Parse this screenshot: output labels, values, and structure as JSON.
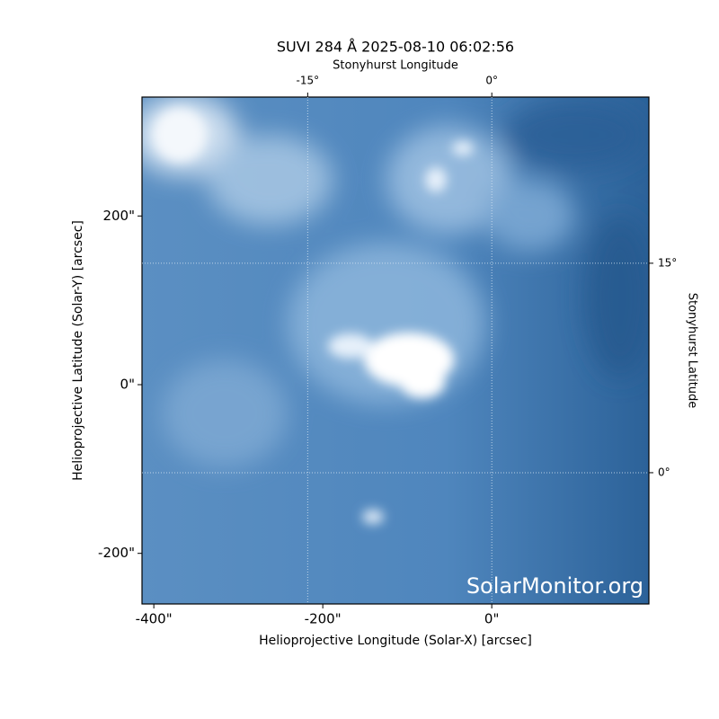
{
  "chart_data": {
    "type": "image",
    "title": "SUVI 284 Å 2025-08-10 06:02:56",
    "xlabel": "Helioprojective Longitude (Solar-X) [arcsec]",
    "ylabel": "Helioprojective Latitude (Solar-Y) [arcsec]",
    "x2label": "Stonyhurst Longitude",
    "y2label": "Stonyhurst Latitude",
    "watermark": "SolarMonitor.org",
    "xlim": [
      -414,
      186
    ],
    "ylim": [
      -260,
      341
    ],
    "xticks": [
      {
        "value": -400,
        "label": "-400\""
      },
      {
        "value": -200,
        "label": "-200\""
      },
      {
        "value": 0,
        "label": "0\""
      }
    ],
    "yticks": [
      {
        "value": -200,
        "label": "-200\""
      },
      {
        "value": 0,
        "label": "0\""
      },
      {
        "value": 200,
        "label": "200\""
      }
    ],
    "x2lim": [
      -28.5,
      12.8
    ],
    "x2ticks": [
      {
        "value": -15,
        "label": "-15°"
      },
      {
        "value": 0,
        "label": "0°"
      }
    ],
    "y2lim": [
      -9.4,
      26.9
    ],
    "y2ticks": [
      {
        "value": 0,
        "label": "0°"
      },
      {
        "value": 15,
        "label": "15°"
      }
    ],
    "grid": true
  }
}
